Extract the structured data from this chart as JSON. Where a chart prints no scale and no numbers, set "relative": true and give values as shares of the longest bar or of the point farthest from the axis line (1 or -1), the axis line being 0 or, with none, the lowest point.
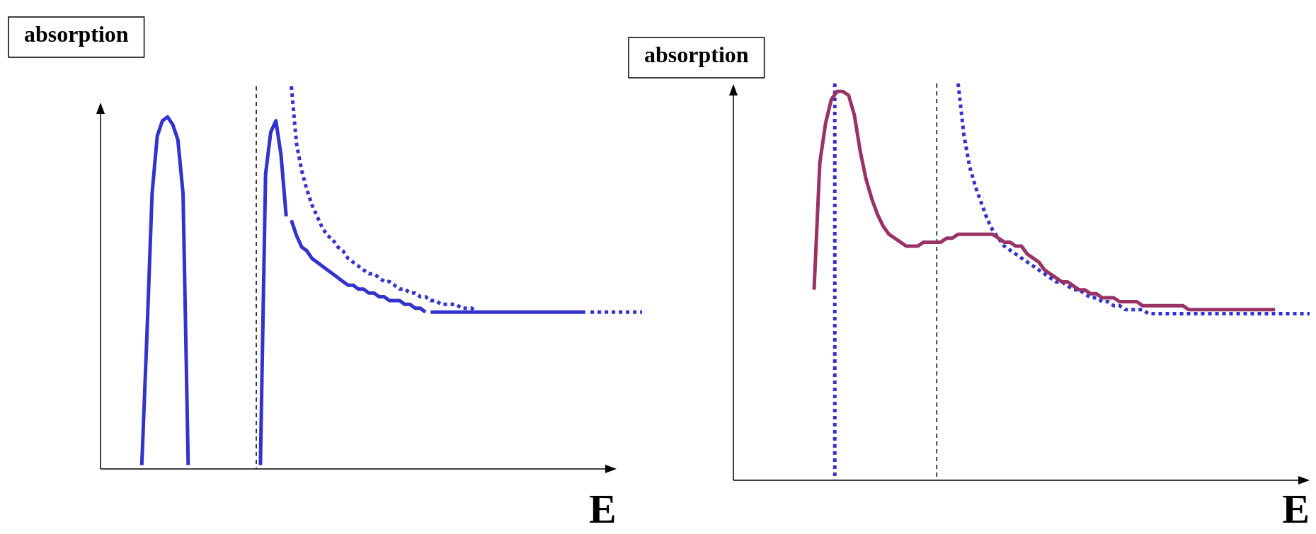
{
  "chart_data": [
    {
      "type": "line",
      "relative": true,
      "ylabel": "absorption",
      "xlabel": "E",
      "tick_labels": false,
      "categories": [
        null,
        null,
        null,
        null,
        null,
        null,
        null,
        null,
        null,
        null,
        null,
        null,
        null,
        null,
        null,
        null,
        null,
        null,
        null,
        null,
        null,
        null,
        null,
        null,
        null,
        null,
        null,
        null,
        null,
        null,
        null,
        null,
        null,
        null,
        null,
        null,
        null,
        null,
        null,
        null,
        null,
        null,
        null,
        null,
        null,
        null,
        null,
        null,
        null,
        null,
        null,
        null,
        null,
        null,
        null,
        null,
        null,
        null,
        null,
        null,
        null,
        null,
        null,
        null,
        null,
        null,
        null,
        null,
        null,
        null,
        null,
        null,
        null,
        null,
        null,
        null,
        null,
        null,
        null,
        null,
        null,
        null,
        null,
        null,
        null,
        null,
        null,
        null,
        null,
        null,
        null,
        null,
        null,
        null,
        null,
        null,
        null,
        null,
        null,
        null,
        null,
        null,
        null,
        null,
        null,
        null
      ],
      "series": [
        {
          "color": "#3333cc",
          "line_style": "solid",
          "values": [
            null,
            null,
            null,
            null,
            null,
            null,
            null,
            null,
            0.01,
            0.35,
            0.72,
            0.87,
            0.91,
            0.92,
            0.9,
            0.86,
            0.72,
            0.01,
            null,
            null,
            null,
            null,
            null,
            null,
            null,
            null,
            null,
            null,
            null,
            null,
            null,
            null,
            null,
            null,
            null,
            null,
            null,
            null,
            null,
            null,
            null,
            null,
            null,
            null,
            null,
            null,
            null,
            null,
            null,
            null,
            null,
            null,
            null,
            null,
            null,
            null,
            null,
            null,
            null,
            null,
            null,
            null,
            null,
            null,
            null,
            null,
            null,
            null,
            null,
            null,
            null,
            null,
            null,
            null,
            null,
            null,
            null,
            null,
            null,
            null,
            null,
            null,
            null,
            null,
            null,
            null,
            null,
            null,
            null,
            null,
            null,
            null,
            null,
            null,
            null,
            null,
            null,
            null,
            null,
            null,
            null,
            null,
            null,
            null,
            null,
            null
          ]
        },
        {
          "color": "#3333cc",
          "line_style": "solid",
          "values": [
            null,
            null,
            null,
            null,
            null,
            null,
            null,
            null,
            null,
            null,
            null,
            null,
            null,
            null,
            null,
            null,
            null,
            null,
            null,
            null,
            null,
            null,
            null,
            null,
            null,
            null,
            null,
            null,
            null,
            null,
            null,
            0.01,
            0.77,
            0.88,
            0.91,
            0.82,
            0.66,
            null,
            null,
            null,
            null,
            null,
            null,
            null,
            null,
            null,
            null,
            null,
            null,
            null,
            null,
            null,
            null,
            null,
            null,
            null,
            null,
            null,
            null,
            null,
            null,
            null,
            null,
            null,
            null,
            null,
            null,
            null,
            null,
            null,
            null,
            null,
            null,
            null,
            null,
            null,
            null,
            null,
            null,
            null,
            null,
            null,
            null,
            null,
            null,
            null,
            null,
            null,
            null,
            null,
            null,
            null,
            null,
            null,
            null,
            null,
            null,
            null,
            null,
            null,
            null,
            null,
            null,
            null,
            null,
            null
          ]
        },
        {
          "color": "#3333cc",
          "line_style": "solid",
          "values": [
            null,
            null,
            null,
            null,
            null,
            null,
            null,
            null,
            null,
            null,
            null,
            null,
            null,
            null,
            null,
            null,
            null,
            null,
            null,
            null,
            null,
            null,
            null,
            null,
            null,
            null,
            null,
            null,
            null,
            null,
            null,
            null,
            null,
            null,
            null,
            null,
            null,
            0.65,
            0.61,
            0.58,
            0.57,
            0.55,
            0.54,
            0.53,
            0.52,
            0.51,
            0.5,
            0.49,
            0.48,
            0.48,
            0.47,
            0.47,
            0.46,
            0.46,
            0.45,
            0.45,
            0.44,
            0.44,
            0.44,
            0.43,
            0.43,
            0.42,
            0.42,
            0.41,
            null,
            null,
            null,
            null,
            null,
            null,
            null,
            null,
            null,
            null,
            null,
            null,
            null,
            null,
            null,
            null,
            null,
            null,
            null,
            null,
            null,
            null,
            null,
            null,
            null,
            null,
            null,
            null,
            null,
            null,
            null,
            null,
            null,
            null,
            null,
            null,
            null,
            null,
            null,
            null,
            null,
            null
          ]
        },
        {
          "color": "#3333cc",
          "line_style": "solid",
          "values": [
            null,
            null,
            null,
            null,
            null,
            null,
            null,
            null,
            null,
            null,
            null,
            null,
            null,
            null,
            null,
            null,
            null,
            null,
            null,
            null,
            null,
            null,
            null,
            null,
            null,
            null,
            null,
            null,
            null,
            null,
            null,
            null,
            null,
            null,
            null,
            null,
            null,
            null,
            null,
            null,
            null,
            null,
            null,
            null,
            null,
            null,
            null,
            null,
            null,
            null,
            null,
            null,
            null,
            null,
            null,
            null,
            null,
            null,
            null,
            null,
            null,
            null,
            null,
            null,
            0.41,
            0.41,
            0.41,
            0.41,
            0.41,
            0.41,
            0.41,
            0.41,
            0.41,
            0.41,
            0.41,
            0.41,
            0.41,
            0.41,
            0.41,
            0.41,
            0.41,
            0.41,
            0.41,
            0.41,
            0.41,
            0.41,
            0.41,
            0.41,
            0.41,
            0.41,
            0.41,
            0.41,
            0.41,
            0.41,
            0.41,
            null,
            null,
            null,
            null,
            null,
            null,
            null,
            null,
            null,
            null,
            null
          ]
        },
        {
          "color": "#3333cc",
          "line_style": "dotted",
          "values": [
            null,
            null,
            null,
            null,
            null,
            null,
            null,
            null,
            null,
            null,
            null,
            null,
            null,
            null,
            null,
            null,
            null,
            null,
            null,
            null,
            null,
            null,
            null,
            null,
            null,
            null,
            null,
            null,
            null,
            null,
            null,
            null,
            null,
            null,
            null,
            null,
            null,
            1,
            0.85,
            0.78,
            0.73,
            0.69,
            0.66,
            0.63,
            0.61,
            0.6,
            0.58,
            0.57,
            0.55,
            0.54,
            0.53,
            0.52,
            0.51,
            0.51,
            0.5,
            0.49,
            0.49,
            0.48,
            0.47,
            0.47,
            0.46,
            0.46,
            0.45,
            0.45,
            0.44,
            0.44,
            0.43,
            0.43,
            0.43,
            0.43,
            0.42,
            0.42,
            0.42,
            0.41,
            null,
            null,
            null,
            null,
            null,
            null,
            null,
            null,
            null,
            null,
            null,
            null,
            null,
            null,
            null,
            null,
            null,
            null,
            null,
            null,
            null,
            null,
            null,
            null,
            null,
            null,
            null,
            null,
            null,
            null,
            null,
            null
          ]
        },
        {
          "color": "#3333cc",
          "line_style": "dotted",
          "values": [
            null,
            null,
            null,
            null,
            null,
            null,
            null,
            null,
            null,
            null,
            null,
            null,
            null,
            null,
            null,
            null,
            null,
            null,
            null,
            null,
            null,
            null,
            null,
            null,
            null,
            null,
            null,
            null,
            null,
            null,
            null,
            null,
            null,
            null,
            null,
            null,
            null,
            null,
            null,
            null,
            null,
            null,
            null,
            null,
            null,
            null,
            null,
            null,
            null,
            null,
            null,
            null,
            null,
            null,
            null,
            null,
            null,
            null,
            null,
            null,
            null,
            null,
            null,
            null,
            null,
            null,
            null,
            null,
            null,
            null,
            null,
            null,
            null,
            null,
            null,
            null,
            null,
            null,
            null,
            null,
            null,
            null,
            null,
            null,
            null,
            null,
            null,
            null,
            null,
            null,
            null,
            null,
            null,
            null,
            null,
            0.41,
            0.41,
            0.41,
            0.41,
            0.41,
            0.41,
            0.41,
            0.41,
            0.41,
            0.41,
            0.41
          ]
        }
      ]
    },
    {
      "type": "line",
      "relative": true,
      "ylabel": "absorption",
      "xlabel": "E",
      "tick_labels": false,
      "categories": [
        null,
        null,
        null,
        null,
        null,
        null,
        null,
        null,
        null,
        null,
        null,
        null,
        null,
        null,
        null,
        null,
        null,
        null,
        null,
        null,
        null,
        null,
        null,
        null,
        null,
        null,
        null,
        null,
        null,
        null,
        null,
        null,
        null,
        null,
        null,
        null,
        null,
        null,
        null,
        null,
        null,
        null,
        null,
        null,
        null,
        null,
        null,
        null,
        null,
        null,
        null,
        null,
        null,
        null,
        null,
        null,
        null,
        null,
        null,
        null,
        null,
        null,
        null,
        null,
        null,
        null,
        null,
        null,
        null,
        null,
        null,
        null,
        null,
        null,
        null,
        null,
        null,
        null,
        null,
        null,
        null,
        null,
        null,
        null,
        null,
        null,
        null,
        null,
        null,
        null,
        null,
        null,
        null,
        null,
        null,
        null,
        null,
        null,
        null,
        null,
        null
      ],
      "series": [
        {
          "color": "#3333cc",
          "line_style": "dotted",
          "values": [
            null,
            null,
            null,
            null,
            null,
            null,
            null,
            null,
            null,
            null,
            null,
            null,
            null,
            null,
            null,
            null,
            null,
            null,
            null,
            null,
            null,
            null,
            null,
            null,
            null,
            null,
            null,
            null,
            null,
            null,
            null,
            null,
            null,
            null,
            null,
            null,
            null,
            null,
            null,
            1,
            0.87,
            0.79,
            0.74,
            0.7,
            0.66,
            0.63,
            0.61,
            0.59,
            0.58,
            0.57,
            0.56,
            0.55,
            0.54,
            0.53,
            0.52,
            0.51,
            0.5,
            0.5,
            0.49,
            0.48,
            0.48,
            0.47,
            0.46,
            0.46,
            0.45,
            0.45,
            0.44,
            0.44,
            0.43,
            0.43,
            0.43,
            0.43,
            0.42,
            0.42,
            0.42,
            0.42,
            0.42,
            0.42,
            0.42,
            0.42,
            0.42,
            0.42,
            0.42,
            0.42,
            0.42,
            0.42,
            0.42,
            0.42,
            0.42,
            0.42,
            0.42,
            0.42,
            0.42,
            0.42,
            0.42,
            0.42,
            0.42,
            0.42,
            0.42,
            0.42,
            0.42
          ]
        },
        {
          "color": "#993366",
          "line_style": "solid",
          "values": [
            null,
            null,
            null,
            null,
            null,
            null,
            null,
            null,
            null,
            null,
            null,
            null,
            null,
            null,
            0.48,
            0.8,
            0.9,
            0.96,
            0.98,
            0.98,
            0.97,
            0.92,
            0.83,
            0.76,
            0.71,
            0.67,
            0.64,
            0.62,
            0.61,
            0.6,
            0.59,
            0.59,
            0.59,
            0.6,
            0.6,
            0.6,
            0.6,
            0.61,
            0.61,
            0.62,
            0.62,
            0.62,
            0.62,
            0.62,
            0.62,
            0.62,
            0.61,
            0.6,
            0.6,
            0.59,
            0.59,
            0.57,
            0.56,
            0.55,
            0.53,
            0.52,
            0.51,
            0.5,
            0.5,
            0.49,
            0.48,
            0.48,
            0.47,
            0.47,
            0.46,
            0.46,
            0.46,
            0.45,
            0.45,
            0.45,
            0.45,
            0.44,
            0.44,
            0.44,
            0.44,
            0.44,
            0.44,
            0.44,
            0.44,
            0.43,
            0.43,
            0.43,
            0.43,
            0.43,
            0.43,
            0.43,
            0.43,
            0.43,
            0.43,
            0.43,
            0.43,
            0.43,
            0.43,
            0.43,
            0.43,
            null,
            null,
            null,
            null,
            null,
            null
          ]
        }
      ]
    }
  ]
}
